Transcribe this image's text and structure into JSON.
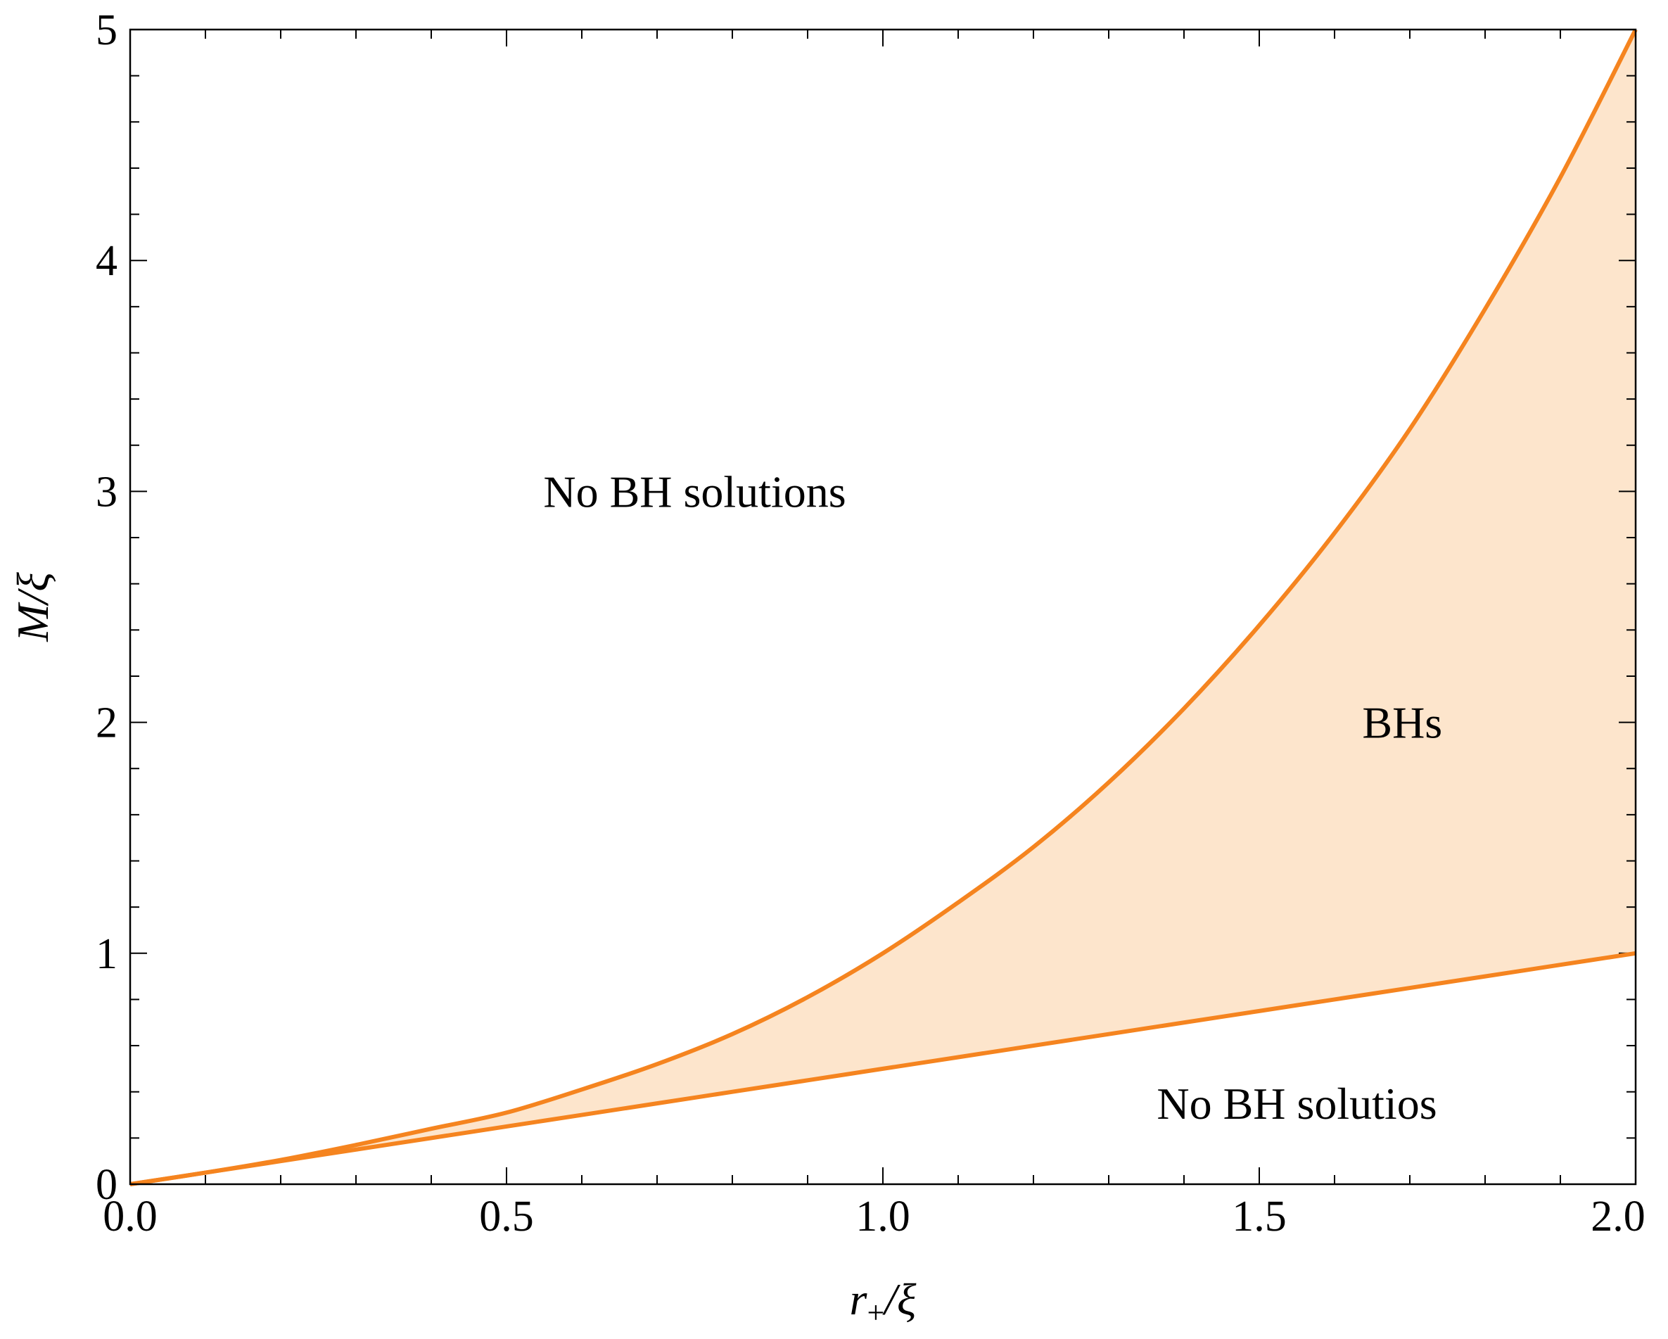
{
  "chart_data": {
    "type": "area",
    "title": "",
    "xlabel": {
      "main": "r",
      "subscript": "+",
      "tail": "/ξ"
    },
    "ylabel": "M/ξ",
    "xlim": [
      0,
      2
    ],
    "ylim": [
      0,
      5
    ],
    "x_ticks_major": [
      "0.0",
      "0.5",
      "1.0",
      "1.5",
      "2.0"
    ],
    "y_ticks_major": [
      "0",
      "1",
      "2",
      "3",
      "4",
      "5"
    ],
    "x_minor_step": 0.1,
    "y_minor_step": 0.2,
    "grid": false,
    "fill_color": "#fde5cc",
    "line_color": "#f5841f",
    "series": [
      {
        "x": [
          0,
          0.1,
          0.2,
          0.3,
          0.4,
          0.5,
          0.6,
          0.7,
          0.8,
          0.9,
          1.0,
          1.1,
          1.2,
          1.3,
          1.4,
          1.5,
          1.6,
          1.7,
          1.8,
          1.9,
          2.0
        ],
        "y": [
          0,
          0.05,
          0.1,
          0.15,
          0.2,
          0.25,
          0.3,
          0.35,
          0.4,
          0.45,
          0.5,
          0.55,
          0.6,
          0.65,
          0.7,
          0.75,
          0.8,
          0.85,
          0.9,
          0.95,
          1.0
        ]
      },
      {
        "x": [
          0,
          0.1,
          0.2,
          0.3,
          0.4,
          0.5,
          0.6,
          0.7,
          0.8,
          0.9,
          1.0,
          1.1,
          1.2,
          1.3,
          1.4,
          1.5,
          1.6,
          1.7,
          1.8,
          1.9,
          2.0
        ],
        "y": [
          0,
          0.05,
          0.105,
          0.17,
          0.24,
          0.31,
          0.41,
          0.52,
          0.65,
          0.81,
          1.0,
          1.22,
          1.46,
          1.74,
          2.06,
          2.42,
          2.82,
          3.27,
          3.79,
          4.36,
          5.0
        ]
      }
    ],
    "annotations": [
      {
        "text": "No BH solutions",
        "x": 0.75,
        "y": 3.0
      },
      {
        "text": "BHs",
        "x": 1.69,
        "y": 2.0
      },
      {
        "text": "No BH solutios",
        "x": 1.55,
        "y": 0.35
      }
    ]
  }
}
